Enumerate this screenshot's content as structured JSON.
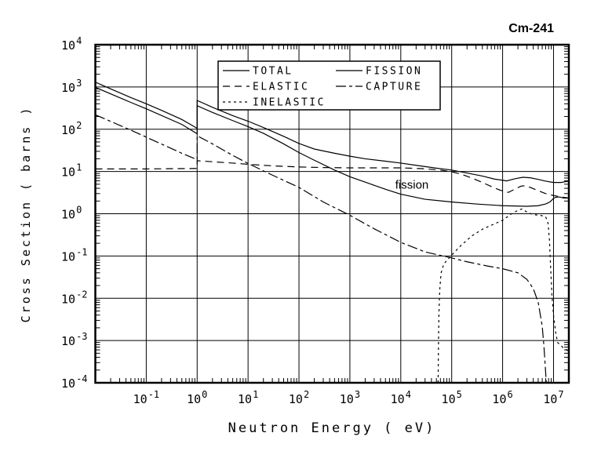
{
  "window": {
    "background": "#ffffff",
    "ink": "#000000"
  },
  "header": {
    "title": "Cm-241"
  },
  "chart_data": {
    "type": "line",
    "title": "Cm-241",
    "xlabel": "Neutron Energy ( eV)",
    "ylabel": "Cross Section ( barns )",
    "xscale": "log",
    "yscale": "log",
    "xlim": [
      0.01,
      20000000
    ],
    "ylim": [
      0.0001,
      10000
    ],
    "grid": "on",
    "x_tick_exponents": [
      -1,
      0,
      1,
      2,
      3,
      4,
      5,
      6,
      7
    ],
    "y_tick_exponents": [
      4,
      3,
      2,
      1,
      0,
      -1,
      -2,
      -3,
      -4
    ],
    "legend": {
      "position": "top-center",
      "entries": [
        {
          "label": "TOTAL",
          "style": "solid",
          "column": 0
        },
        {
          "label": "ELASTIC",
          "style": "long-dash",
          "column": 0
        },
        {
          "label": "INELASTIC",
          "style": "short-dash",
          "column": 0
        },
        {
          "label": "FISSION",
          "style": "solid",
          "column": 1
        },
        {
          "label": "CAPTURE",
          "style": "dash-dot",
          "column": 1
        }
      ]
    },
    "annotations": [
      {
        "text": "fission",
        "x": 16000,
        "y": 4.8
      }
    ],
    "series": [
      {
        "name": "TOTAL",
        "style": "solid",
        "points": [
          [
            0.01,
            1300
          ],
          [
            0.02,
            900
          ],
          [
            0.05,
            560
          ],
          [
            0.1,
            400
          ],
          [
            0.2,
            280
          ],
          [
            0.5,
            170
          ],
          [
            1,
            105
          ],
          [
            1,
            480
          ],
          [
            2,
            330
          ],
          [
            5,
            210
          ],
          [
            10,
            155
          ],
          [
            20,
            110
          ],
          [
            50,
            68
          ],
          [
            100,
            46
          ],
          [
            200,
            34
          ],
          [
            500,
            27
          ],
          [
            1000,
            23
          ],
          [
            2000,
            20
          ],
          [
            5000,
            17.5
          ],
          [
            10000,
            15.8
          ],
          [
            20000,
            14
          ],
          [
            50000,
            12
          ],
          [
            100000,
            10.8
          ],
          [
            200000,
            9.2
          ],
          [
            400000,
            7.8
          ],
          [
            700000,
            6.6
          ],
          [
            1200000,
            6.0
          ],
          [
            1800000,
            6.8
          ],
          [
            2500000,
            7.3
          ],
          [
            3500000,
            7.1
          ],
          [
            5000000,
            6.5
          ],
          [
            7000000,
            5.9
          ],
          [
            10000000,
            5.5
          ],
          [
            14000000,
            5.5
          ],
          [
            20000000,
            5.9
          ]
        ]
      },
      {
        "name": "ELASTIC",
        "style": "long-dash",
        "points": [
          [
            0.01,
            11.5
          ],
          [
            0.1,
            11.5
          ],
          [
            1,
            11.8
          ],
          [
            1,
            18
          ],
          [
            2,
            17
          ],
          [
            5,
            15.8
          ],
          [
            10,
            14.8
          ],
          [
            30,
            13.6
          ],
          [
            100,
            12.8
          ],
          [
            300,
            12.4
          ],
          [
            1000,
            12.2
          ],
          [
            3000,
            12.2
          ],
          [
            10000,
            12.2
          ],
          [
            30000,
            11.6
          ],
          [
            60000,
            10.8
          ],
          [
            100000,
            9.8
          ],
          [
            150000,
            8.7
          ],
          [
            250000,
            7.0
          ],
          [
            400000,
            5.5
          ],
          [
            600000,
            4.4
          ],
          [
            900000,
            3.6
          ],
          [
            1300000,
            3.2
          ],
          [
            1800000,
            3.9
          ],
          [
            2300000,
            4.5
          ],
          [
            2800000,
            4.6
          ],
          [
            3500000,
            4.2
          ],
          [
            5000000,
            3.5
          ],
          [
            7000000,
            3.0
          ],
          [
            10000000,
            2.7
          ],
          [
            14000000,
            2.5
          ],
          [
            20000000,
            2.35
          ]
        ]
      },
      {
        "name": "INELASTIC",
        "style": "short-dash",
        "points": [
          [
            54000,
            0.0001
          ],
          [
            55000,
            0.0008
          ],
          [
            56000,
            0.004
          ],
          [
            58000,
            0.015
          ],
          [
            62000,
            0.04
          ],
          [
            70000,
            0.065
          ],
          [
            100000,
            0.105
          ],
          [
            150000,
            0.175
          ],
          [
            250000,
            0.3
          ],
          [
            400000,
            0.43
          ],
          [
            700000,
            0.58
          ],
          [
            1000000,
            0.7
          ],
          [
            1500000,
            1.0
          ],
          [
            2000000,
            1.2
          ],
          [
            2400000,
            1.3
          ],
          [
            3000000,
            1.1
          ],
          [
            4000000,
            0.95
          ],
          [
            5500000,
            0.92
          ],
          [
            7000000,
            0.85
          ],
          [
            7800000,
            0.6
          ],
          [
            8300000,
            0.25
          ],
          [
            8800000,
            0.05
          ],
          [
            9300000,
            0.012
          ],
          [
            10000000,
            0.004
          ],
          [
            11000000,
            0.0016
          ],
          [
            12000000,
            0.0009
          ],
          [
            15000000,
            0.0007
          ],
          [
            20000000,
            0.00055
          ]
        ]
      },
      {
        "name": "FISSION",
        "style": "solid",
        "points": [
          [
            0.01,
            980
          ],
          [
            0.05,
            430
          ],
          [
            0.1,
            305
          ],
          [
            0.5,
            130
          ],
          [
            1,
            78
          ],
          [
            1,
            360
          ],
          [
            2,
            250
          ],
          [
            5,
            160
          ],
          [
            10,
            115
          ],
          [
            20,
            80
          ],
          [
            50,
            45
          ],
          [
            100,
            28
          ],
          [
            200,
            18.5
          ],
          [
            500,
            10.8
          ],
          [
            1000,
            7.5
          ],
          [
            2000,
            5.6
          ],
          [
            5000,
            3.8
          ],
          [
            10000,
            2.9
          ],
          [
            30000,
            2.2
          ],
          [
            100000,
            1.9
          ],
          [
            300000,
            1.7
          ],
          [
            1000000,
            1.55
          ],
          [
            3000000,
            1.5
          ],
          [
            5000000,
            1.55
          ],
          [
            7000000,
            1.7
          ],
          [
            8500000,
            1.9
          ],
          [
            10000000,
            2.3
          ],
          [
            11000000,
            2.45
          ],
          [
            13000000,
            2.5
          ],
          [
            16000000,
            2.35
          ],
          [
            20000000,
            2.35
          ]
        ]
      },
      {
        "name": "CAPTURE",
        "style": "dash-dot",
        "points": [
          [
            0.01,
            220
          ],
          [
            0.05,
            95
          ],
          [
            0.1,
            65
          ],
          [
            0.5,
            27
          ],
          [
            1,
            19
          ],
          [
            1,
            70
          ],
          [
            2,
            45
          ],
          [
            5,
            24
          ],
          [
            10,
            15.5
          ],
          [
            30,
            8.2
          ],
          [
            100,
            4.2
          ],
          [
            300,
            1.9
          ],
          [
            1000,
            0.92
          ],
          [
            3000,
            0.44
          ],
          [
            10000,
            0.21
          ],
          [
            30000,
            0.125
          ],
          [
            100000,
            0.09
          ],
          [
            200000,
            0.073
          ],
          [
            500000,
            0.058
          ],
          [
            1000000,
            0.05
          ],
          [
            2000000,
            0.04
          ],
          [
            3000000,
            0.028
          ],
          [
            4000000,
            0.017
          ],
          [
            5000000,
            0.008
          ],
          [
            6000000,
            0.0022
          ],
          [
            6500000,
            0.0007
          ],
          [
            7200000,
            0.000105
          ]
        ]
      }
    ]
  }
}
